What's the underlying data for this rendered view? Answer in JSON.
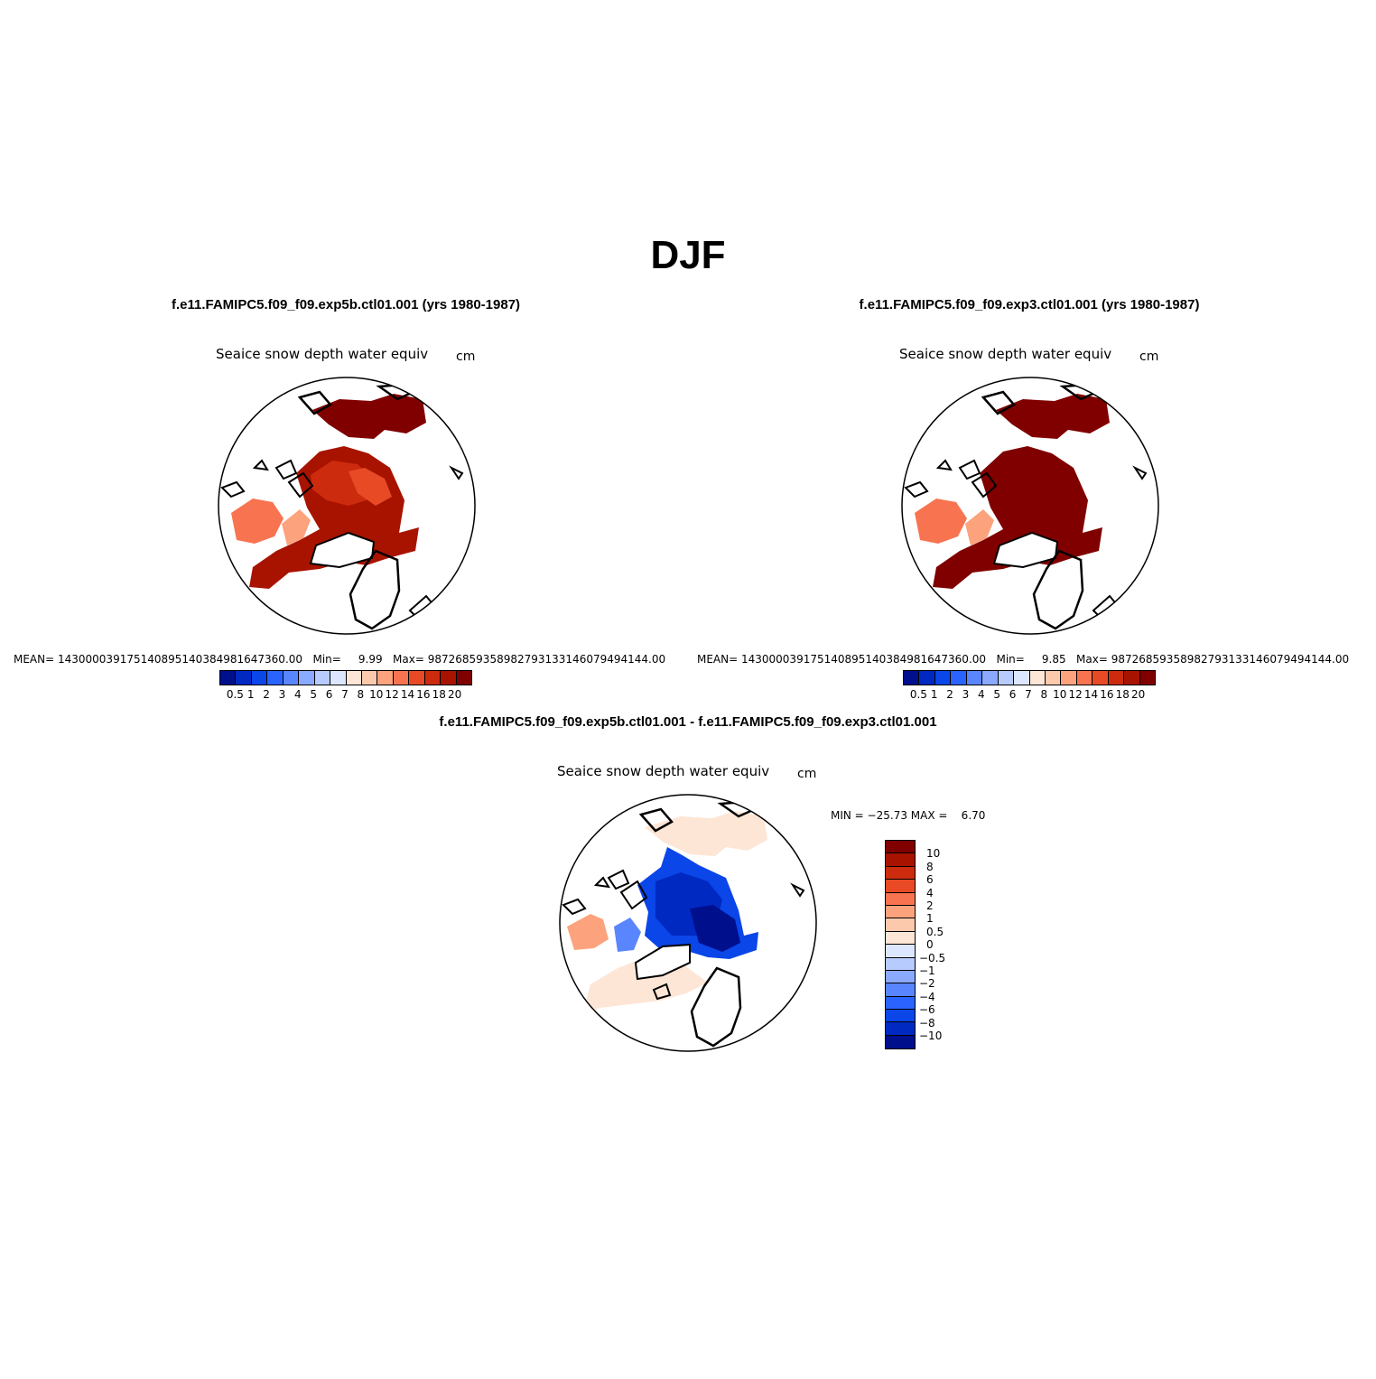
{
  "title": "DJF",
  "colors": {
    "levels_abs": [
      "#000f8c",
      "#0029c2",
      "#0a46e8",
      "#2a63ff",
      "#5985ff",
      "#8aa9ff",
      "#b7cbff",
      "#dce6ff",
      "#fde6d6",
      "#fcc9ad",
      "#fca37d",
      "#f87451",
      "#e84a26",
      "#cc2c0d",
      "#a81300",
      "#800000"
    ],
    "levels_diff": [
      "#800000",
      "#a81300",
      "#cc2c0d",
      "#e84a26",
      "#f87451",
      "#fca37d",
      "#fcc9ad",
      "#fde6d6",
      "#dce6ff",
      "#b7cbff",
      "#8aa9ff",
      "#5985ff",
      "#2a63ff",
      "#0a46e8",
      "#0029c2",
      "#000f8c"
    ]
  },
  "panels": [
    {
      "title": "f.e11.FAMIPC5.f09_f09.exp5b.ctl01.001 (yrs 1980-1987)",
      "variable": "Seaice snow depth water equiv",
      "units": "cm",
      "stats": "MEAN= 143000039175140895140384981647360.00   Min=     9.99   Max= 98726859358982793133146079494144.00",
      "colorbar_labels": [
        "0.5",
        "1",
        "2",
        "3",
        "4",
        "5",
        "6",
        "7",
        "8",
        "10",
        "12",
        "14",
        "16",
        "18",
        "20"
      ]
    },
    {
      "title": "f.e11.FAMIPC5.f09_f09.exp3.ctl01.001 (yrs 1980-1987)",
      "variable": "Seaice snow depth water equiv",
      "units": "cm",
      "stats": "MEAN= 143000039175140895140384981647360.00   Min=     9.85   Max= 98726859358982793133146079494144.00",
      "colorbar_labels": [
        "0.5",
        "1",
        "2",
        "3",
        "4",
        "5",
        "6",
        "7",
        "8",
        "10",
        "12",
        "14",
        "16",
        "18",
        "20"
      ]
    }
  ],
  "diff_panel": {
    "title": "f.e11.FAMIPC5.f09_f09.exp5b.ctl01.001 - f.e11.FAMIPC5.f09_f09.exp3.ctl01.001",
    "variable": "Seaice snow depth water equiv",
    "units": "cm",
    "stats": "MIN = −25.73 MAX =    6.70",
    "colorbar_labels": [
      "10",
      "8",
      "6",
      "4",
      "2",
      "1",
      "0.5",
      "0",
      "−0.5",
      "−1",
      "−2",
      "−4",
      "−6",
      "−8",
      "−10"
    ]
  }
}
